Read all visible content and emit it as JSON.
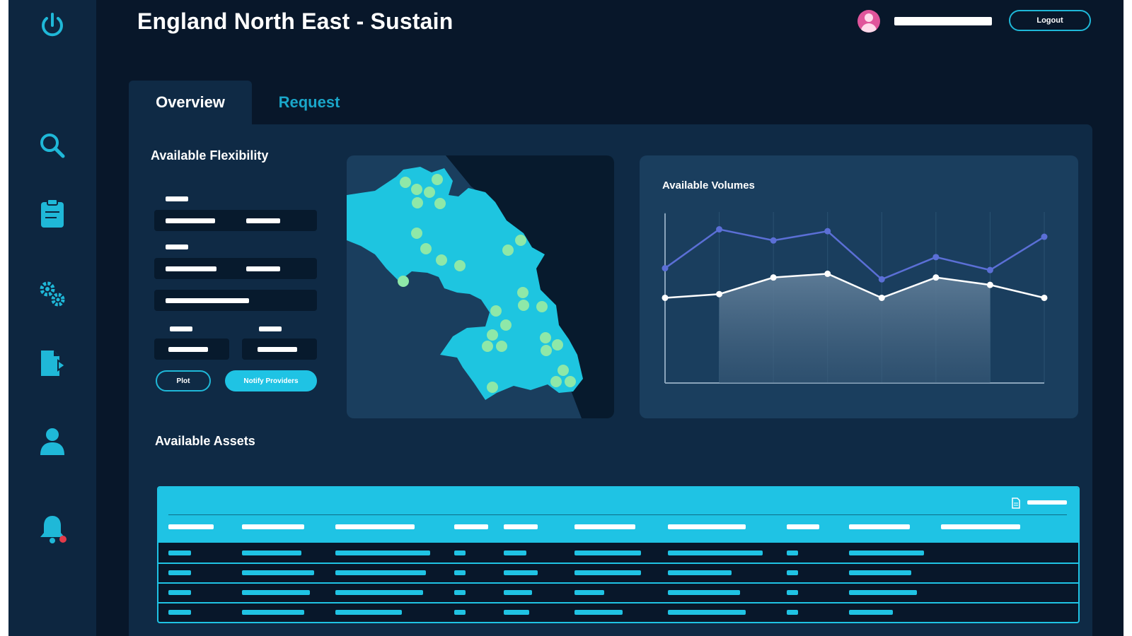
{
  "header": {
    "title": "England North East - Sustain",
    "logout_label": "Logout"
  },
  "sidebar": {
    "icons": [
      "power-icon",
      "search-icon",
      "clipboard-icon",
      "gears-icon",
      "document-export-icon",
      "user-icon",
      "bell-icon"
    ]
  },
  "tabs": [
    {
      "label": "Overview",
      "active": true
    },
    {
      "label": "Request",
      "active": false
    }
  ],
  "flexibility": {
    "title": "Available Flexibility",
    "plot_label": "Plot",
    "notify_label": "Notify Providers"
  },
  "chart_data": {
    "type": "line",
    "title": "Available Volumes",
    "x": [
      1,
      2,
      3,
      4,
      5,
      6,
      7,
      8
    ],
    "series": [
      {
        "values": [
          62,
          83,
          77,
          82,
          56,
          68,
          61,
          79
        ],
        "color": "#5b6fd6"
      },
      {
        "values": [
          46,
          48,
          57,
          59,
          46,
          57,
          53,
          46
        ],
        "color": "#ffffff"
      }
    ],
    "ylim": [
      0,
      100
    ],
    "grid": true,
    "shaded_range": [
      2,
      7
    ]
  },
  "assets": {
    "title": "Available Assets",
    "columns": 10,
    "rows": 4
  },
  "colors": {
    "accent": "#1fc3e4",
    "background": "#08172a",
    "panel": "#0f2a45",
    "card": "#1a3e5e",
    "map_fill": "#1ec5e0",
    "map_marker": "#8ee8a8",
    "alert": "#e23b4a"
  }
}
